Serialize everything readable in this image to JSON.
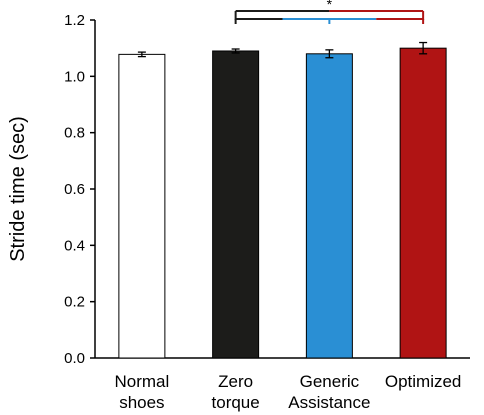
{
  "chart_data": {
    "type": "bar",
    "title": "",
    "xlabel": "",
    "ylabel": "Stride time (sec)",
    "ylim": [
      0,
      1.2
    ],
    "yticks": [
      "0.0",
      "0.2",
      "0.4",
      "0.6",
      "0.8",
      "1.0",
      "1.2"
    ],
    "grid": false,
    "categories": [
      [
        "Normal",
        "shoes"
      ],
      [
        "Zero",
        "torque"
      ],
      [
        "Generic",
        "Assistance"
      ],
      [
        "Optimized"
      ]
    ],
    "values": [
      1.078,
      1.09,
      1.08,
      1.1
    ],
    "errors": [
      0.008,
      0.007,
      0.014,
      0.02
    ],
    "colors": [
      "#ffffff",
      "#1c1c1a",
      "#2a8fd4",
      "#b01414"
    ],
    "significance": {
      "marker": "*",
      "brackets": [
        {
          "from": 1,
          "to": 3,
          "segments": [
            {
              "from": 1,
              "to": 1.5,
              "color": "#1c1c1a"
            },
            {
              "from": 1.5,
              "to": 2.5,
              "color": "#2a8fd4"
            },
            {
              "from": 2.5,
              "to": 3,
              "color": "#b01414"
            }
          ],
          "level": 1
        },
        {
          "from": 1,
          "to": 3,
          "segments": [
            {
              "from": 1,
              "to": 2,
              "color": "#1c1c1a"
            },
            {
              "from": 2,
              "to": 3,
              "color": "#b01414"
            }
          ],
          "level": 2,
          "drops": [
            1,
            3
          ]
        }
      ]
    }
  }
}
